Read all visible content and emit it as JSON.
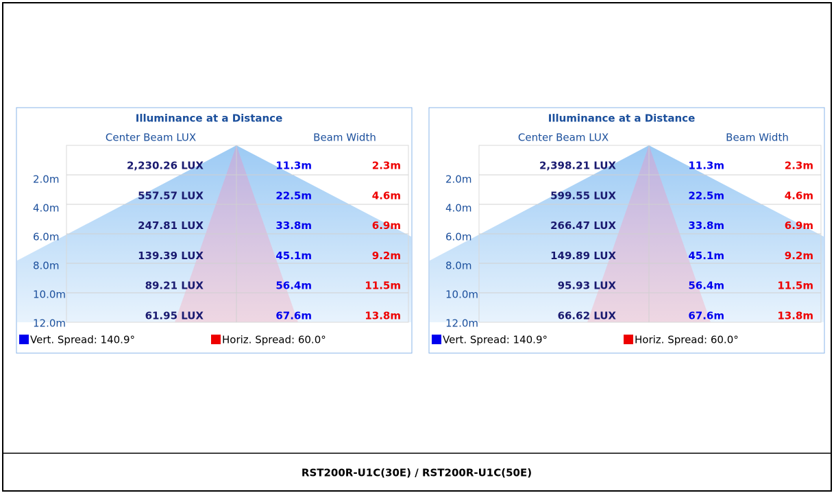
{
  "panels": [
    {
      "title": "Illuminance at a Distance",
      "center_label": "Center Beam LUX",
      "beam_label": "Beam Width",
      "rows": [
        {
          "distance": "2.0m",
          "lux": "2,230.26 LUX",
          "vertical": "11.3m",
          "horizontal": "2.3m"
        },
        {
          "distance": "4.0m",
          "lux": "557.57 LUX",
          "vertical": "22.5m",
          "horizontal": "4.6m"
        },
        {
          "distance": "6.0m",
          "lux": "247.81 LUX",
          "vertical": "33.8m",
          "horizontal": "6.9m"
        },
        {
          "distance": "8.0m",
          "lux": "139.39 LUX",
          "vertical": "45.1m",
          "horizontal": "9.2m"
        },
        {
          "distance": "10.0m",
          "lux": "89.21 LUX",
          "vertical": "56.4m",
          "horizontal": "11.5m"
        },
        {
          "distance": "12.0m",
          "lux": "61.95 LUX",
          "vertical": "67.6m",
          "horizontal": "13.8m"
        }
      ],
      "legend": [
        "Vert. Spread: 140.9°",
        "Horiz. Spread: 60.0°"
      ]
    },
    {
      "title": "Illuminance at a Distance",
      "center_label": "Center Beam LUX",
      "beam_label": "Beam Width",
      "rows": [
        {
          "distance": "2.0m",
          "lux": "2,398.21 LUX",
          "vertical": "11.3m",
          "horizontal": "2.3m"
        },
        {
          "distance": "4.0m",
          "lux": "599.55 LUX",
          "vertical": "22.5m",
          "horizontal": "4.6m"
        },
        {
          "distance": "6.0m",
          "lux": "266.47 LUX",
          "vertical": "33.8m",
          "horizontal": "6.9m"
        },
        {
          "distance": "8.0m",
          "lux": "149.89 LUX",
          "vertical": "45.1m",
          "horizontal": "9.2m"
        },
        {
          "distance": "10.0m",
          "lux": "95.93 LUX",
          "vertical": "56.4m",
          "horizontal": "11.5m"
        },
        {
          "distance": "12.0m",
          "lux": "66.62 LUX",
          "vertical": "67.6m",
          "horizontal": "13.8m"
        }
      ],
      "legend": [
        "Vert. Spread: 140.9°",
        "Horiz. Spread: 60.0°"
      ]
    }
  ],
  "caption": "RST200R-U1C(30E) / RST200R-U1C(50E)"
}
